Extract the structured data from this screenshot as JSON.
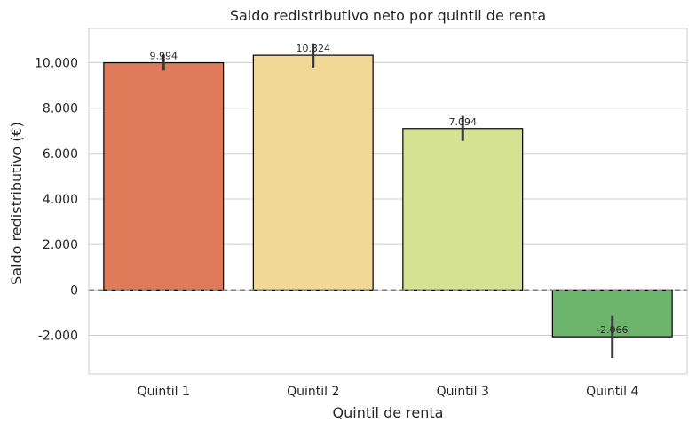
{
  "chart_data": {
    "type": "bar",
    "title": "Saldo redistributivo neto por quintil de renta",
    "xlabel": "Quintil de renta",
    "ylabel": "Saldo redistributivo (€)",
    "categories": [
      "Quintil 1",
      "Quintil 2",
      "Quintil 3",
      "Quintil 4"
    ],
    "values": [
      9994,
      10324,
      7094,
      -2066
    ],
    "value_labels": [
      "9.994",
      "10.324",
      "7.094",
      "-2.066"
    ],
    "error_low": [
      9650,
      9750,
      6550,
      -3000
    ],
    "error_high": [
      10350,
      10850,
      7650,
      -1150
    ],
    "colors": [
      "#e07b5a",
      "#f1d896",
      "#d5e291",
      "#6db46d"
    ],
    "ylim": [
      -3700,
      11500
    ],
    "yticks": [
      -2000,
      0,
      2000,
      4000,
      6000,
      8000,
      10000
    ],
    "ytick_labels": [
      "-2.000",
      "0",
      "2.000",
      "4.000",
      "6.000",
      "8.000",
      "10.000"
    ],
    "grid": "horizontal",
    "reference_line": 0
  }
}
